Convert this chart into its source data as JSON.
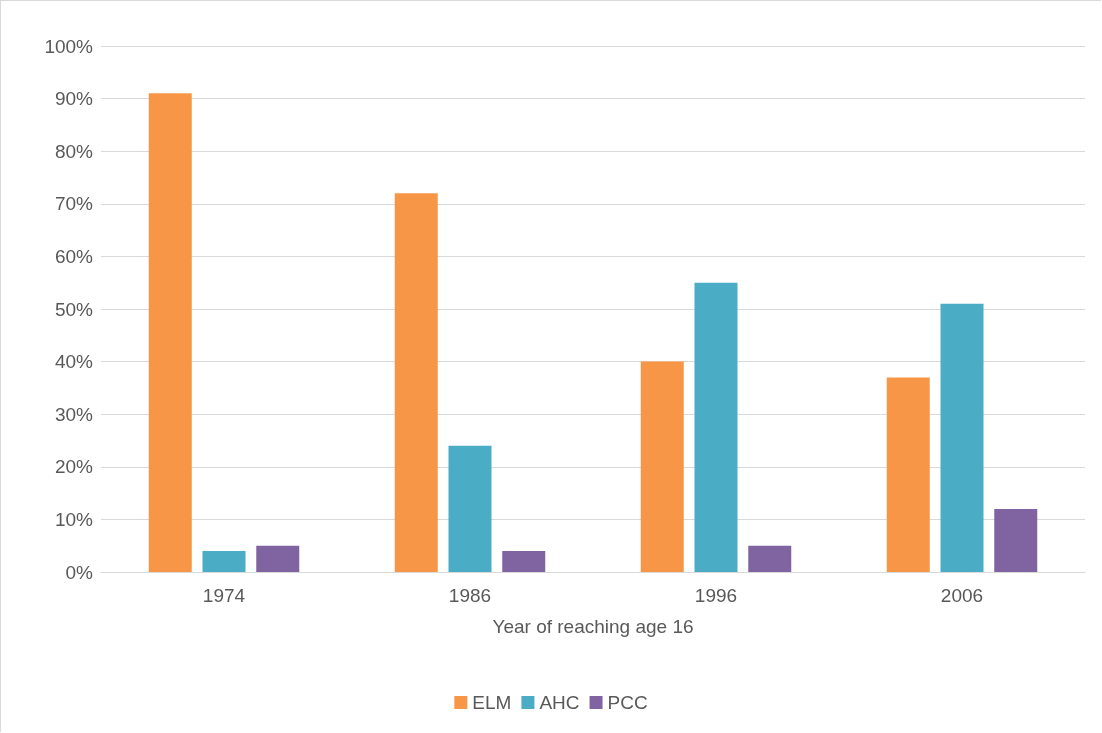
{
  "chart_data": {
    "type": "bar",
    "xlabel": "Year of reaching age 16",
    "categories": [
      "1974",
      "1986",
      "1996",
      "2006"
    ],
    "series": [
      {
        "name": "ELM",
        "color": "#f79646",
        "values": [
          91,
          72,
          40,
          37
        ]
      },
      {
        "name": "AHC",
        "color": "#4bacc6",
        "values": [
          4,
          24,
          55,
          51
        ]
      },
      {
        "name": "PCC",
        "color": "#8064a2",
        "values": [
          5,
          4,
          5,
          12
        ]
      }
    ],
    "ylim": [
      0,
      100
    ],
    "yticks": [
      {
        "value": 0,
        "label": "0%"
      },
      {
        "value": 10,
        "label": "10%"
      },
      {
        "value": 20,
        "label": "20%"
      },
      {
        "value": 30,
        "label": "30%"
      },
      {
        "value": 40,
        "label": "40%"
      },
      {
        "value": 50,
        "label": "50%"
      },
      {
        "value": 60,
        "label": "60%"
      },
      {
        "value": 70,
        "label": "70%"
      },
      {
        "value": 80,
        "label": "80%"
      },
      {
        "value": 90,
        "label": "90%"
      },
      {
        "value": 100,
        "label": "100%"
      }
    ],
    "grid": "y",
    "legend": "bottom"
  }
}
